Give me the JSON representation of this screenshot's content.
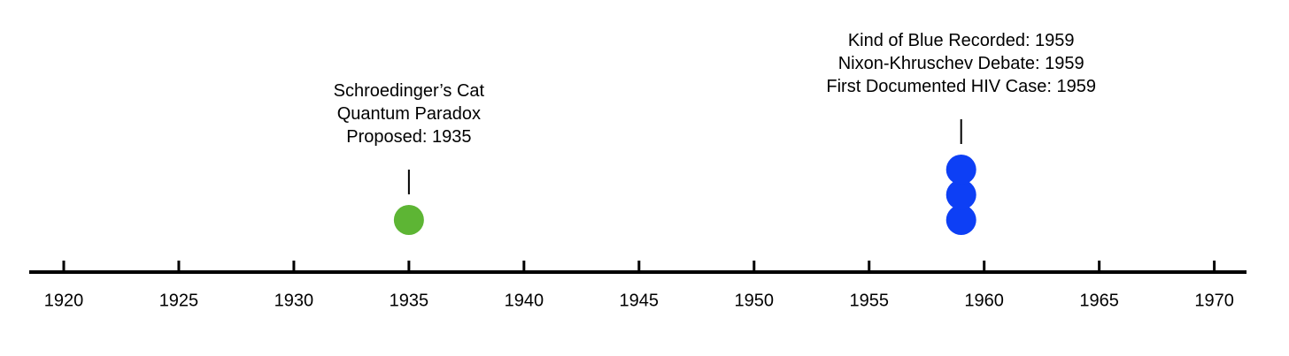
{
  "chart_data": {
    "type": "timeline",
    "xlim": [
      1918.5,
      1971.4
    ],
    "xticks": [
      1920,
      1925,
      1930,
      1935,
      1940,
      1945,
      1950,
      1955,
      1960,
      1965,
      1970
    ],
    "groups": [
      {
        "x": 1935,
        "color": "#5db534",
        "events": [
          "Schroedinger’s Cat Quantum Paradox Proposed: 1935"
        ]
      },
      {
        "x": 1959,
        "color": "#0d3ff5",
        "events": [
          "First Documented HIV Case: 1959",
          "Nixon-Khruschev Debate: 1959",
          "Kind of Blue Recorded: 1959"
        ]
      }
    ]
  }
}
